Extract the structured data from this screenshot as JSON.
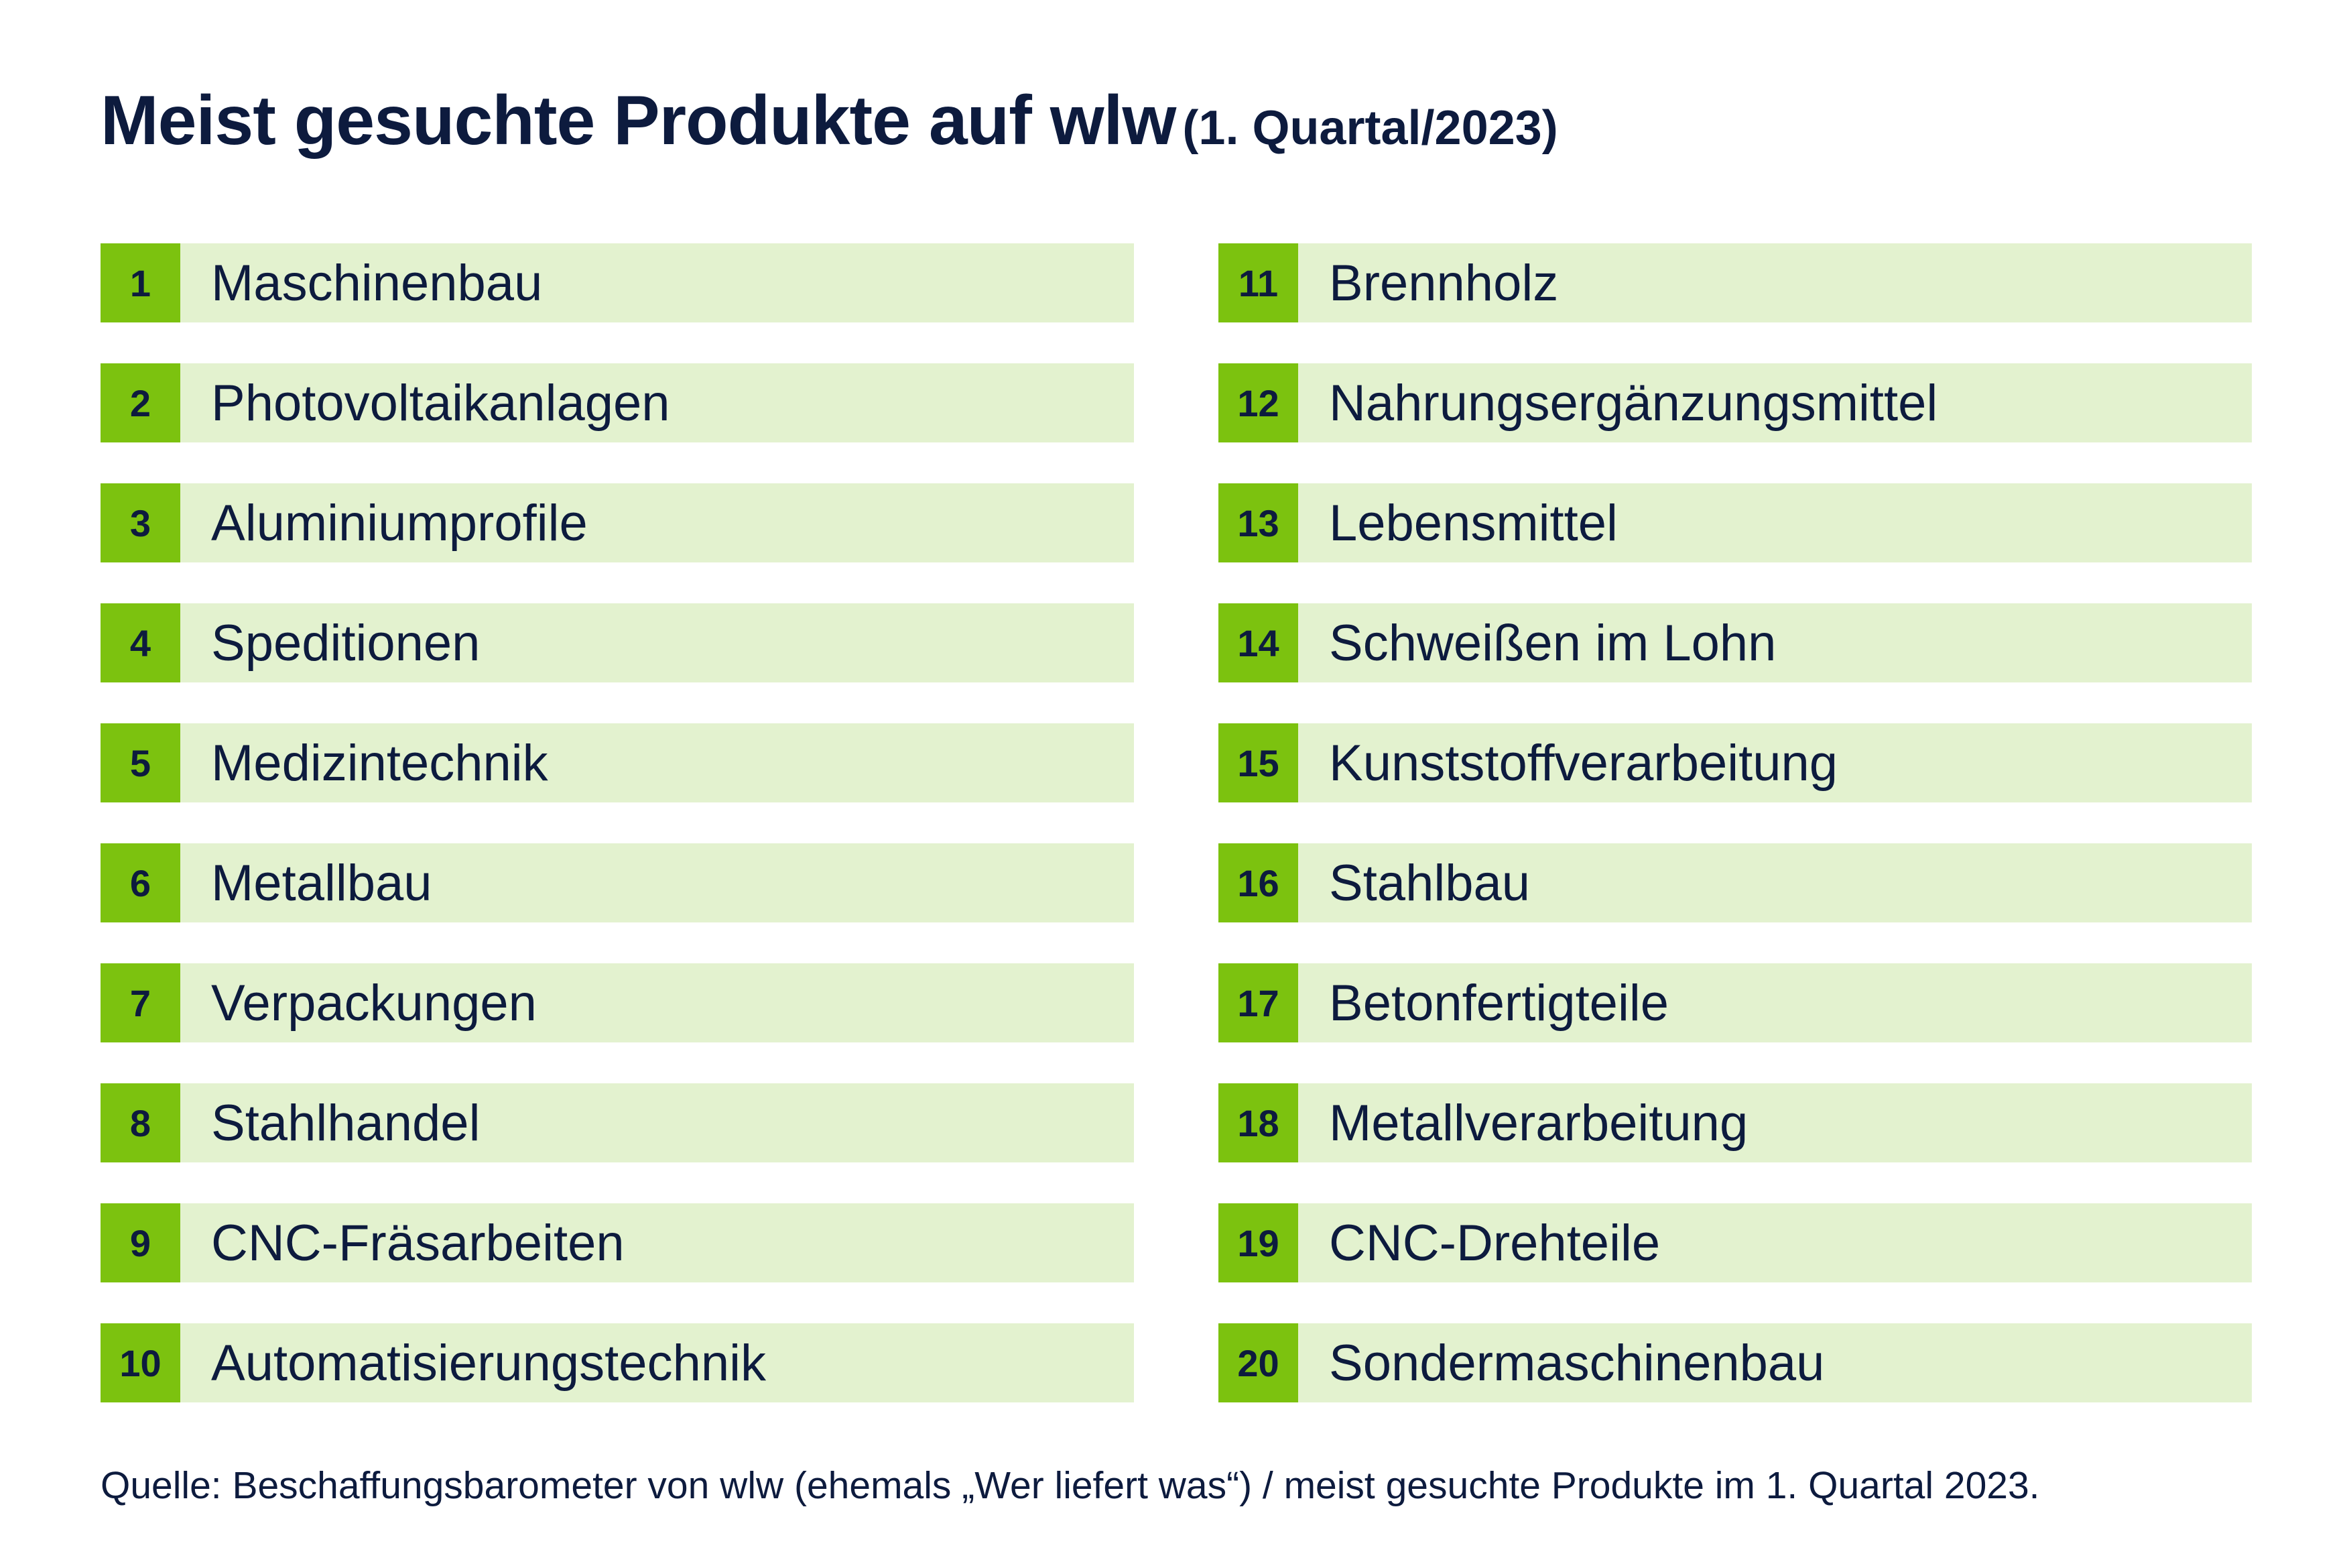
{
  "title": {
    "main": "Meist gesuchte Produkte auf wlw",
    "sub": "(1. Quartal/2023)"
  },
  "left_items": [
    {
      "rank": "1",
      "label": "Maschinenbau"
    },
    {
      "rank": "2",
      "label": "Photovoltaikanlagen"
    },
    {
      "rank": "3",
      "label": "Aluminiumprofile"
    },
    {
      "rank": "4",
      "label": "Speditionen"
    },
    {
      "rank": "5",
      "label": "Medizintechnik"
    },
    {
      "rank": "6",
      "label": "Metallbau"
    },
    {
      "rank": "7",
      "label": "Verpackungen"
    },
    {
      "rank": "8",
      "label": "Stahlhandel"
    },
    {
      "rank": "9",
      "label": "CNC-Fräsarbeiten"
    },
    {
      "rank": "10",
      "label": "Automatisierungstechnik"
    }
  ],
  "right_items": [
    {
      "rank": "11",
      "label": "Brennholz"
    },
    {
      "rank": "12",
      "label": "Nahrungsergänzungsmittel"
    },
    {
      "rank": "13",
      "label": "Lebensmittel"
    },
    {
      "rank": "14",
      "label": "Schweißen im Lohn"
    },
    {
      "rank": "15",
      "label": "Kunststoffverarbeitung"
    },
    {
      "rank": "16",
      "label": "Stahlbau"
    },
    {
      "rank": "17",
      "label": "Betonfertigteile"
    },
    {
      "rank": "18",
      "label": "Metallverarbeitung"
    },
    {
      "rank": "19",
      "label": "CNC-Drehteile"
    },
    {
      "rank": "20",
      "label": "Sondermaschinenbau"
    }
  ],
  "source": "Quelle: Beschaffungsbarometer von wlw (ehemals „Wer liefert was“) / meist gesuchte Produkte im 1. Quartal 2023.",
  "colors": {
    "rank_badge": "#7cc20f",
    "row_background": "#e3f2cf",
    "text": "#0d1b3e"
  }
}
